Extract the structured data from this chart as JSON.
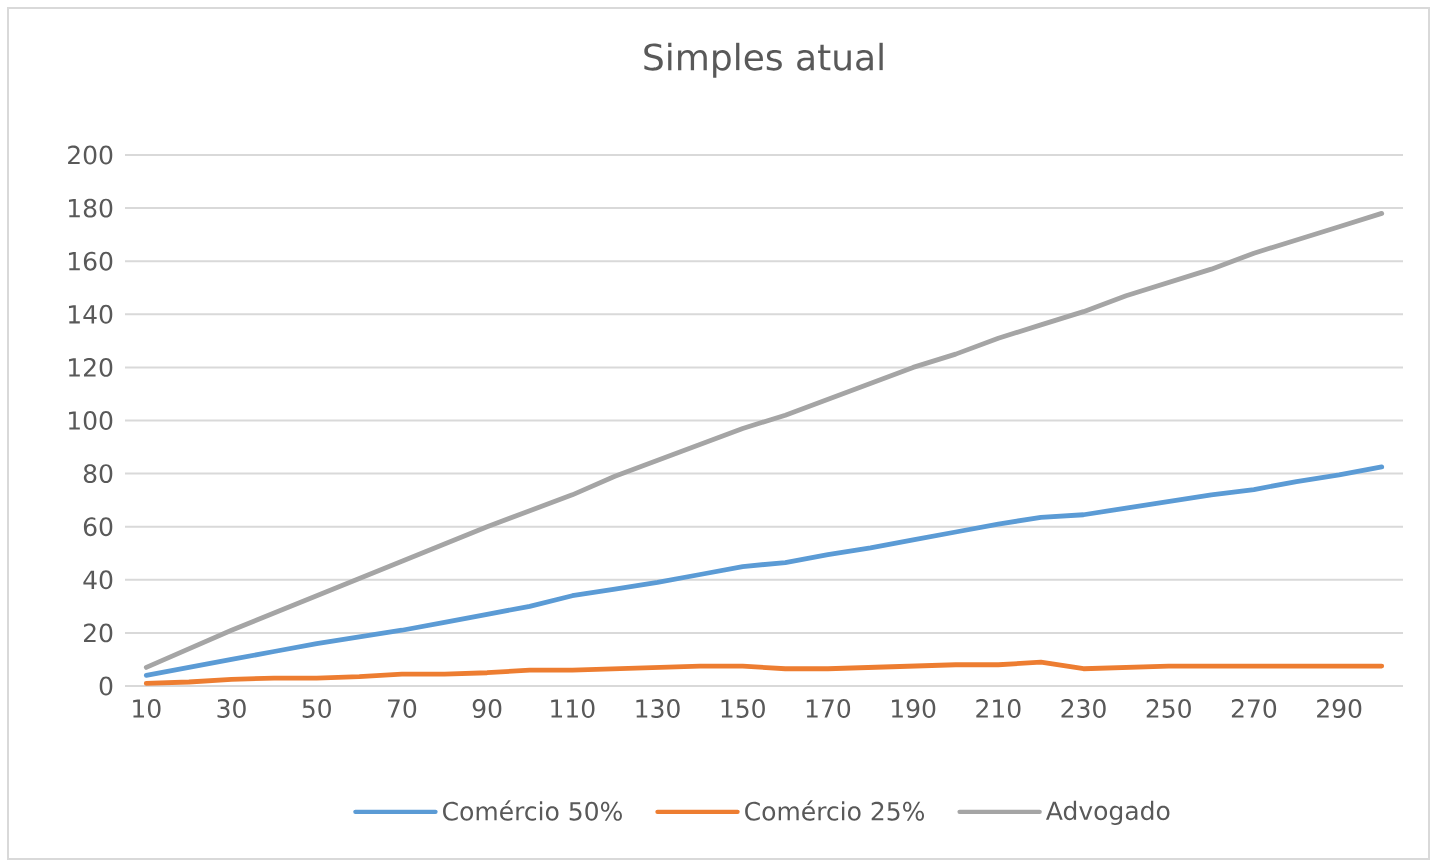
{
  "chart_data": {
    "type": "line",
    "title": "Simples atual",
    "categories": [
      "10",
      null,
      "30",
      null,
      "50",
      null,
      "70",
      null,
      "90",
      null,
      "110",
      null,
      "130",
      null,
      "150",
      null,
      "170",
      null,
      "190",
      null,
      "210",
      null,
      "230",
      null,
      "250",
      null,
      "270",
      null,
      "290",
      null
    ],
    "series": [
      {
        "name": "Comércio 50%",
        "color": "#5b9bd5",
        "values": [
          4,
          7,
          10,
          13,
          16,
          18.5,
          21,
          24,
          27,
          30,
          34,
          36.5,
          39,
          42,
          45,
          46.5,
          49.5,
          52,
          55,
          58,
          61,
          63.5,
          64.5,
          67,
          69.5,
          72,
          74,
          77,
          79.5,
          82.5
        ]
      },
      {
        "name": "Comércio 25%",
        "color": "#ed7d31",
        "values": [
          1,
          1.5,
          2.5,
          3,
          3,
          3.5,
          4.5,
          4.5,
          5,
          6,
          6,
          6.5,
          7,
          7.5,
          7.5,
          6.5,
          6.5,
          7,
          7.5,
          8,
          8,
          9,
          6.5,
          7,
          7.5,
          7.5,
          7.5,
          7.5,
          7.5,
          7.5
        ]
      },
      {
        "name": "Advogado",
        "color": "#a5a5a5",
        "values": [
          7,
          14,
          21,
          27.5,
          34,
          40.5,
          47,
          53.5,
          60,
          66,
          72,
          79,
          85,
          91,
          97,
          102,
          108,
          114,
          120,
          125,
          131,
          136,
          141,
          147,
          152,
          157,
          163,
          168,
          173,
          178
        ]
      }
    ],
    "ylim": [
      0,
      200
    ],
    "yticks": [
      0,
      20,
      40,
      60,
      80,
      100,
      120,
      140,
      160,
      180,
      200
    ],
    "grid": "y",
    "legend": "bottom",
    "marker": "none",
    "line_style": "solid"
  }
}
